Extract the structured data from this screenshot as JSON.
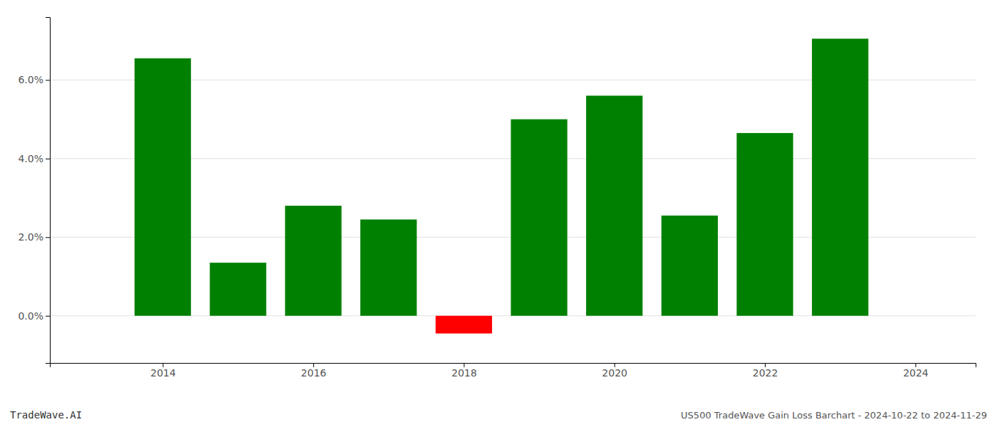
{
  "chart_data": {
    "type": "bar",
    "title": "US500 TradeWave Gain Loss Barchart - 2024-10-22 to 2024-11-29",
    "annotations": [
      {
        "text": "TradeWave.AI"
      }
    ],
    "x": [
      2014,
      2015,
      2016,
      2017,
      2018,
      2019,
      2020,
      2021,
      2022,
      2023
    ],
    "values": [
      0.0655,
      0.0135,
      0.028,
      0.0245,
      -0.0045,
      0.05,
      0.056,
      0.0255,
      0.0465,
      0.0705
    ],
    "colors": [
      "#008000",
      "#008000",
      "#008000",
      "#008000",
      "#ff0000",
      "#008000",
      "#008000",
      "#008000",
      "#008000",
      "#008000"
    ],
    "xlim": [
      2012.5,
      2024.8
    ],
    "xticks": [
      2014,
      2016,
      2018,
      2020,
      2022,
      2024
    ],
    "ylim": [
      -0.012,
      0.076
    ],
    "yticks": [
      {
        "value": 0,
        "label": "0.0%"
      },
      {
        "value": 0.02,
        "label": "2.0%"
      },
      {
        "value": 0.04,
        "label": "4.0%"
      },
      {
        "value": 0.06,
        "label": "6.0%"
      }
    ],
    "grid": true
  }
}
